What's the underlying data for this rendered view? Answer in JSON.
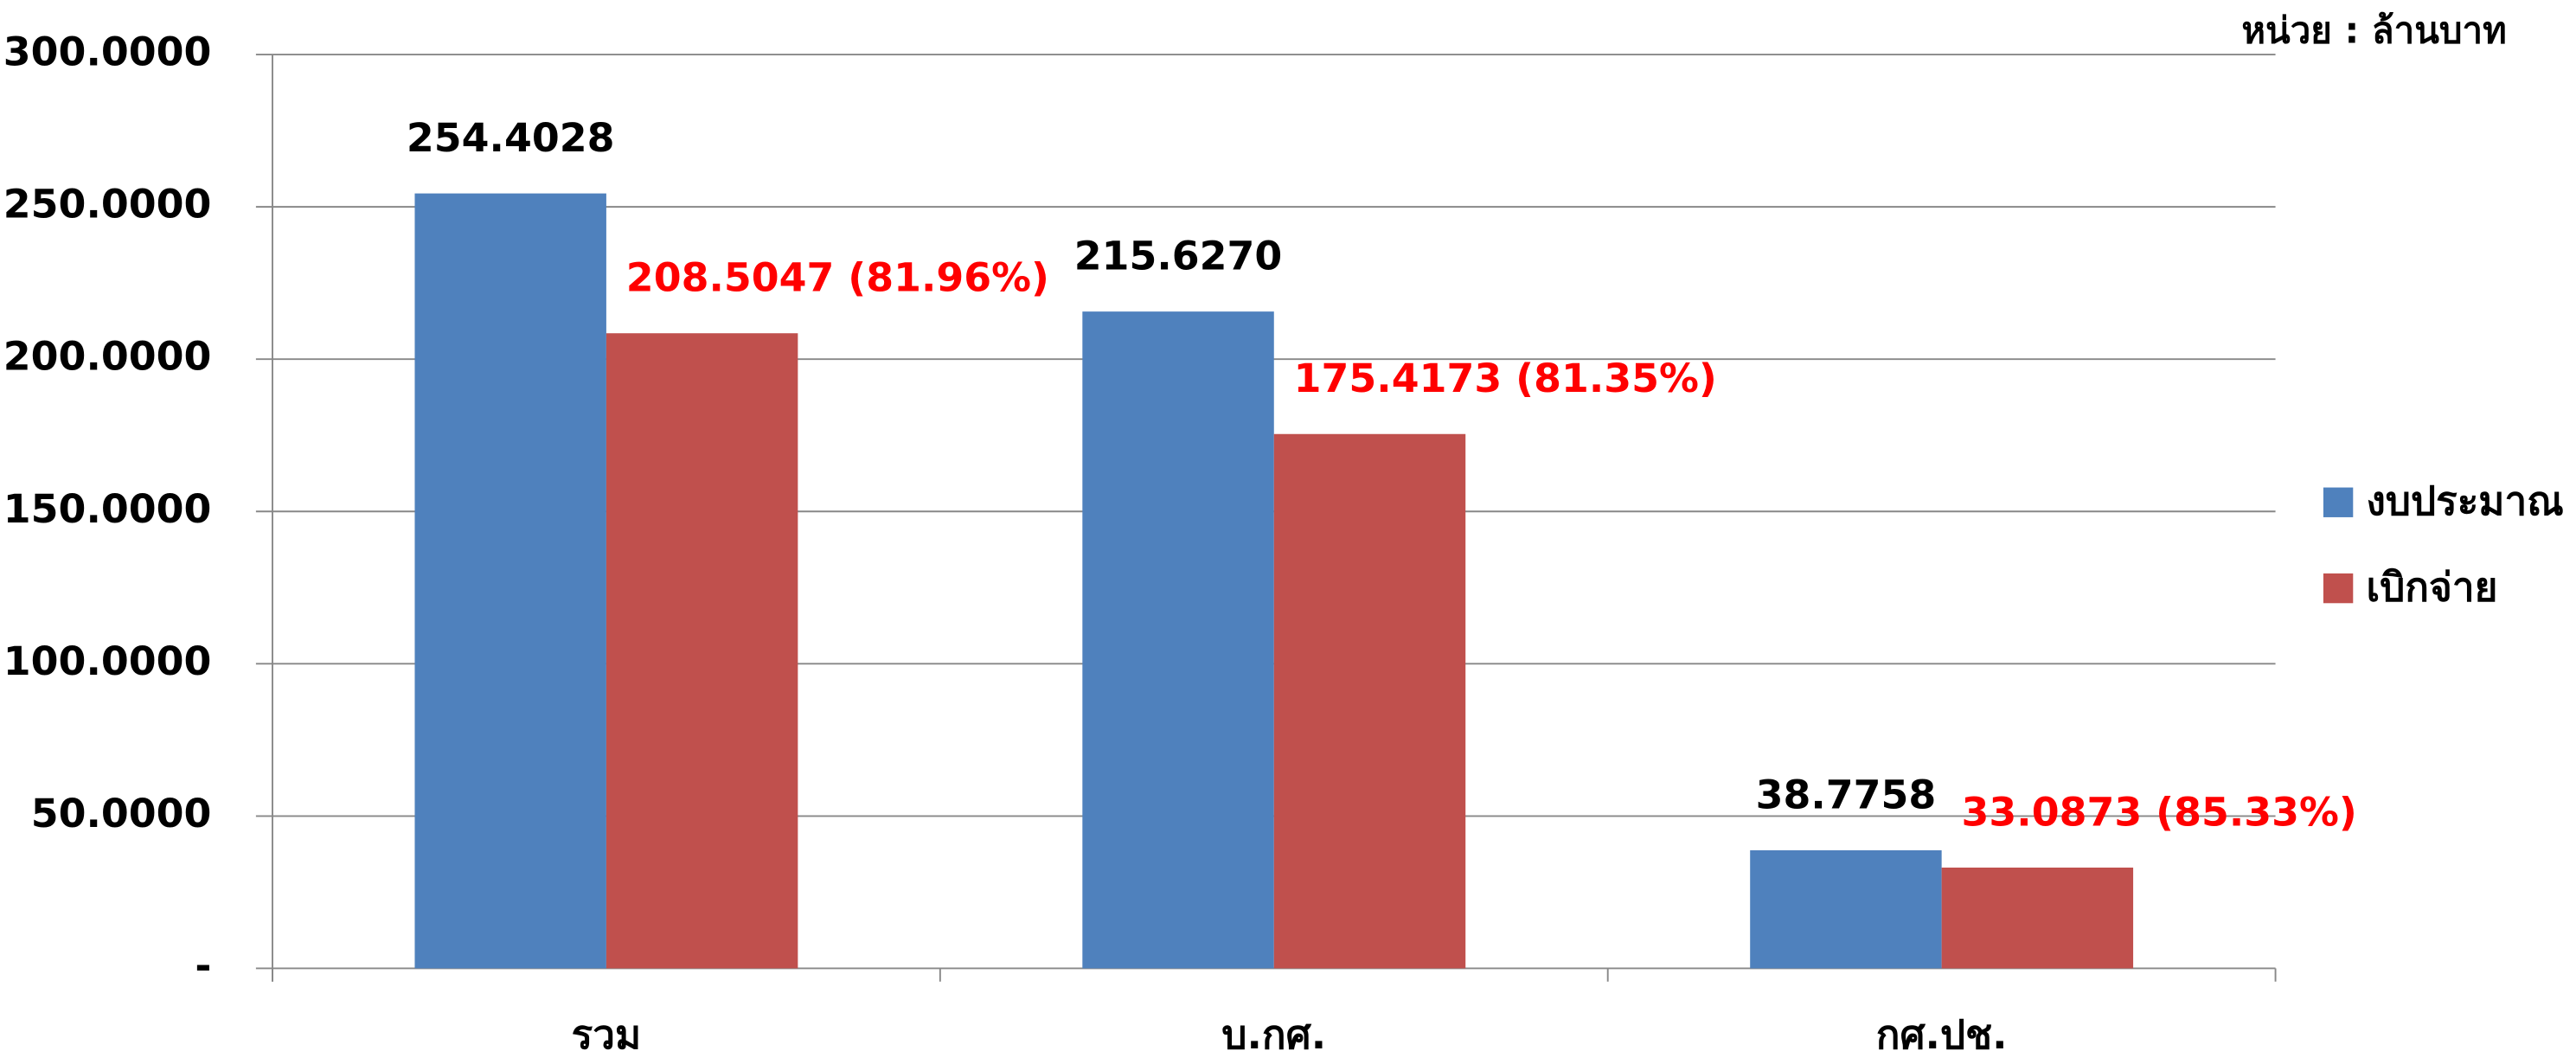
{
  "chart_data": {
    "type": "bar",
    "unit_note": "หน่วย : ล้านบาท",
    "categories": [
      "รวม",
      "บ.กศ.",
      "กศ.ปช."
    ],
    "series": [
      {
        "name": "งบประมาณ",
        "color": "#4f81bd",
        "label_color": "#000000",
        "values": [
          254.4028,
          215.627,
          38.7758
        ],
        "value_labels": [
          "254.4028",
          "215.6270",
          "38.7758"
        ]
      },
      {
        "name": "เบิกจ่าย",
        "color": "#c0504d",
        "label_color": "#ff0000",
        "values": [
          208.5047,
          175.4173,
          33.0873
        ],
        "value_labels": [
          "208.5047 (81.96%)",
          "175.4173 (81.35%)",
          "33.0873 (85.33%)"
        ]
      }
    ],
    "ylim": [
      0,
      300
    ],
    "yticks": [
      {
        "value": 0,
        "label": "-"
      },
      {
        "value": 50,
        "label": "50.0000"
      },
      {
        "value": 100,
        "label": "100.0000"
      },
      {
        "value": 150,
        "label": "150.0000"
      },
      {
        "value": 200,
        "label": "200.0000"
      },
      {
        "value": 250,
        "label": "250.0000"
      },
      {
        "value": 300,
        "label": "300.0000"
      }
    ],
    "grid": true,
    "legend": "right"
  }
}
